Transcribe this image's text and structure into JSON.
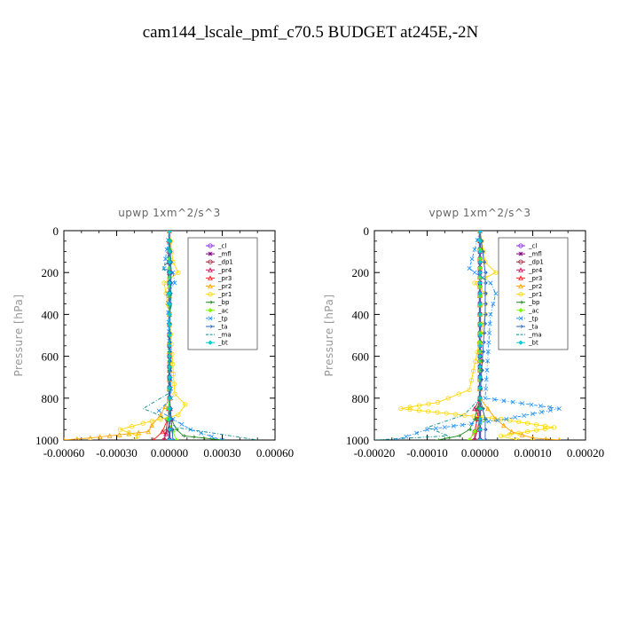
{
  "title": "cam144_lscale_pmf_c70.5  BUDGET at245E,-2N",
  "chart_data": [
    {
      "type": "line",
      "title": "upwp   1xm^2/s^3",
      "ylabel": "Pressure [hPa]",
      "ylim": [
        1000,
        0
      ],
      "xlim": [
        -0.0006,
        0.0006
      ],
      "y_ticks": [
        "0",
        "200",
        "400",
        "600",
        "800",
        "1000"
      ],
      "x_ticks": [
        "-0.00060",
        "-0.00030",
        "0.00000",
        "0.00030",
        "0.00060"
      ],
      "legend": [
        "_cl",
        "_mfl",
        "_dp1",
        "_pr4",
        "_pr3",
        "_pr2",
        "_pr1",
        "_bp",
        "_ac",
        "_tp",
        "_ta",
        "_ma",
        "_bt"
      ],
      "legend_position": "top-right",
      "series": [
        {
          "name": "_cl",
          "color": "#8a2be2",
          "y": [
            0,
            200,
            400,
            600,
            800,
            900,
            1000
          ],
          "x": [
            0,
            0,
            0,
            0,
            0,
            0,
            0
          ]
        },
        {
          "name": "_mfl",
          "color": "#800080",
          "y": [
            0,
            200,
            400,
            600,
            800,
            900,
            1000
          ],
          "x": [
            0,
            0,
            0,
            0,
            0,
            0,
            0
          ]
        },
        {
          "name": "_dp1",
          "color": "#9b1b30",
          "y": [
            0,
            200,
            400,
            600,
            800,
            900,
            960,
            1000
          ],
          "x": [
            0,
            0,
            0,
            0,
            0,
            -1e-05,
            -2e-05,
            -3e-05
          ]
        },
        {
          "name": "_pr4",
          "color": "#d01060",
          "y": [
            0,
            200,
            400,
            800,
            900,
            970,
            1000
          ],
          "x": [
            0,
            0,
            0,
            0,
            1e-05,
            -2e-05,
            -3e-05
          ]
        },
        {
          "name": "_pr3",
          "color": "#ff2020",
          "y": [
            0,
            400,
            800,
            900,
            960,
            1000
          ],
          "x": [
            0,
            0,
            0,
            -1e-05,
            -4e-05,
            -9e-05
          ]
        },
        {
          "name": "_pr2",
          "color": "#ffa500",
          "y": [
            0,
            400,
            800,
            880,
            930,
            960,
            990,
            1000
          ],
          "x": [
            0,
            0,
            0,
            -5e-05,
            -0.0001,
            -0.00012,
            -0.00045,
            -0.0006
          ]
        },
        {
          "name": "_pr1",
          "color": "#ffd700",
          "y": [
            0,
            150,
            200,
            250,
            300,
            400,
            780,
            830,
            880,
            920,
            950,
            980,
            1000
          ],
          "x": [
            0,
            2e-05,
            5e-05,
            -3e-05,
            -2e-05,
            0,
            3e-05,
            9e-05,
            5e-05,
            -0.00015,
            -0.00028,
            -0.00018,
            -0.00019
          ]
        },
        {
          "name": "_bp",
          "color": "#228b22",
          "y": [
            0,
            800,
            900,
            950,
            980,
            1000
          ],
          "x": [
            0,
            0,
            1e-05,
            4e-05,
            8e-05,
            0.0003
          ]
        },
        {
          "name": "_ac",
          "color": "#7cfc00",
          "y": [
            0,
            800,
            900,
            960,
            1000
          ],
          "x": [
            0,
            0,
            -1e-05,
            2e-05,
            4e-05
          ]
        },
        {
          "name": "_tp",
          "color": "#1e90ff",
          "y": [
            0,
            180,
            200,
            250,
            300,
            800,
            860,
            900,
            950,
            1000
          ],
          "x": [
            0,
            -3e-05,
            2e-05,
            3e-05,
            -1e-05,
            1e-05,
            -6e-05,
            2e-05,
            0.00012,
            0.0003
          ]
        },
        {
          "name": "_ta",
          "color": "#2060c0",
          "y": [
            0,
            200,
            400,
            800,
            900,
            1000
          ],
          "x": [
            0,
            1e-05,
            0,
            0,
            1e-05,
            2e-05
          ]
        },
        {
          "name": "_ma",
          "color": "#008b8b",
          "y": [
            0,
            150,
            180,
            200,
            300,
            780,
            850,
            880,
            940,
            980,
            1000
          ],
          "x": [
            0,
            -1e-05,
            -4e-05,
            -1e-05,
            1e-05,
            -1e-05,
            -0.00015,
            -6e-05,
            4e-05,
            0.00035,
            0.0005
          ]
        },
        {
          "name": "_bt",
          "color": "#00ced1",
          "y": [
            0,
            200,
            400,
            600,
            800,
            1000
          ],
          "x": [
            0,
            0,
            0,
            0,
            0,
            0
          ]
        }
      ]
    },
    {
      "type": "line",
      "title": "vpwp   1xm^2/s^3",
      "ylabel": "Pressure [hPa]",
      "ylim": [
        1000,
        0
      ],
      "xlim": [
        -0.0002,
        0.0002
      ],
      "y_ticks": [
        "0",
        "200",
        "400",
        "600",
        "800",
        "1000"
      ],
      "x_ticks": [
        "-0.00020",
        "-0.00010",
        "0.00000",
        "0.00010",
        "0.00020"
      ],
      "legend": [
        "_cl",
        "_mfl",
        "_dp1",
        "_pr4",
        "_pr3",
        "_pr2",
        "_pr1",
        "_bp",
        "_ac",
        "_tp",
        "_ta",
        "_ma",
        "_bt"
      ],
      "legend_position": "top-right",
      "series": [
        {
          "name": "_cl",
          "color": "#8a2be2",
          "y": [
            0,
            200,
            400,
            600,
            800,
            1000
          ],
          "x": [
            0,
            0,
            0,
            0,
            0,
            0
          ]
        },
        {
          "name": "_mfl",
          "color": "#800080",
          "y": [
            0,
            200,
            400,
            600,
            800,
            1000
          ],
          "x": [
            0,
            0,
            0,
            0,
            0,
            0
          ]
        },
        {
          "name": "_dp1",
          "color": "#9b1b30",
          "y": [
            0,
            400,
            800,
            900,
            960,
            1000
          ],
          "x": [
            0,
            0,
            0,
            -5e-06,
            -1e-05,
            -1e-05
          ]
        },
        {
          "name": "_pr4",
          "color": "#d01060",
          "y": [
            0,
            400,
            800,
            850,
            900,
            1000
          ],
          "x": [
            0,
            0,
            0,
            -1e-05,
            0,
            -1e-05
          ]
        },
        {
          "name": "_pr3",
          "color": "#ff2020",
          "y": [
            0,
            400,
            800,
            900,
            960,
            1000
          ],
          "x": [
            0,
            0,
            0,
            -5e-06,
            -1e-05,
            -2e-05
          ]
        },
        {
          "name": "_pr2",
          "color": "#ffa500",
          "y": [
            0,
            400,
            800,
            900,
            960,
            990,
            1000
          ],
          "x": [
            0,
            0,
            0,
            3e-05,
            6e-05,
            0.0001,
            0.00015
          ]
        },
        {
          "name": "_pr1",
          "color": "#ffd700",
          "y": [
            0,
            150,
            200,
            250,
            300,
            400,
            760,
            820,
            850,
            900,
            940,
            980,
            1000
          ],
          "x": [
            0,
            1e-05,
            3e-05,
            -1e-05,
            1e-05,
            1e-05,
            -2e-05,
            -8e-05,
            -0.00015,
            4e-05,
            0.00014,
            4e-05,
            7e-05
          ]
        },
        {
          "name": "_bp",
          "color": "#228b22",
          "y": [
            0,
            800,
            900,
            950,
            980,
            1000
          ],
          "x": [
            0,
            0,
            -1e-05,
            -2e-05,
            -4e-05,
            -8e-05
          ]
        },
        {
          "name": "_ac",
          "color": "#7cfc00",
          "y": [
            0,
            800,
            900,
            960,
            1000
          ],
          "x": [
            0,
            0,
            1e-05,
            -1e-05,
            -2e-05
          ]
        },
        {
          "name": "_tp",
          "color": "#1e90ff",
          "y": [
            0,
            180,
            200,
            250,
            300,
            400,
            800,
            850,
            900,
            950,
            1000
          ],
          "x": [
            0,
            -2e-05,
            -1e-05,
            2e-05,
            3e-05,
            2e-05,
            1e-05,
            0.00015,
            5e-05,
            -0.0001,
            -0.00016
          ]
        },
        {
          "name": "_ta",
          "color": "#2060c0",
          "y": [
            0,
            200,
            400,
            800,
            900,
            1000
          ],
          "x": [
            0,
            1e-05,
            1e-05,
            0,
            1e-05,
            1e-05
          ]
        },
        {
          "name": "_ma",
          "color": "#008b8b",
          "y": [
            0,
            200,
            400,
            800,
            880,
            940,
            980,
            1000
          ],
          "x": [
            0,
            0,
            0,
            0,
            -3e-05,
            -0.0001,
            -6e-05,
            -0.0002
          ]
        },
        {
          "name": "_bt",
          "color": "#00ced1",
          "y": [
            0,
            200,
            400,
            600,
            800,
            1000
          ],
          "x": [
            0,
            0,
            0,
            0,
            0,
            0
          ]
        }
      ]
    }
  ]
}
